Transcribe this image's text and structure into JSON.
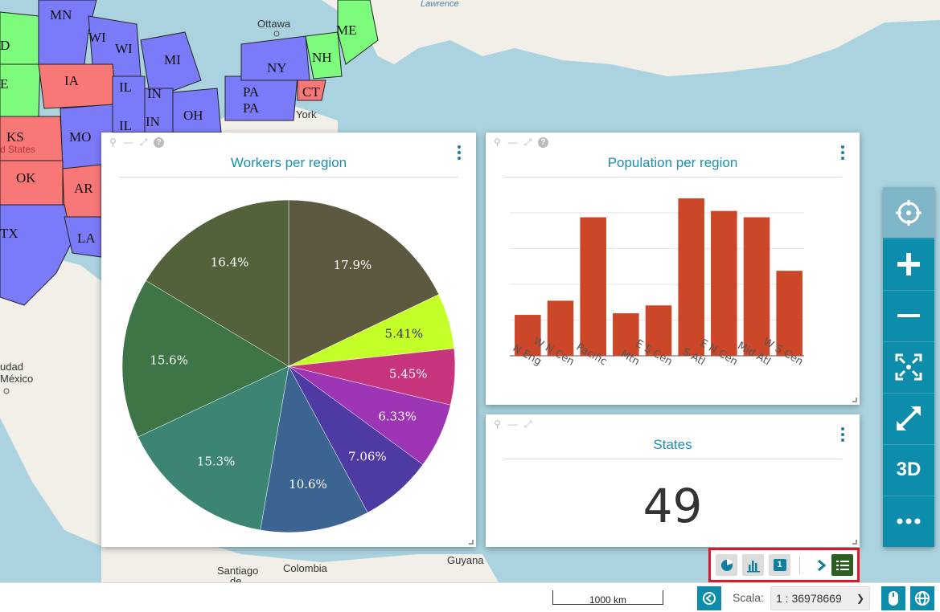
{
  "map": {
    "state_labels": {
      "mn": "MN",
      "wi": "WI",
      "wi2": "WI",
      "mi": "MI",
      "ia": "IA",
      "il": "IL",
      "il2": "IL",
      "in": "IN",
      "in2": "IN",
      "oh": "OH",
      "ny": "NY",
      "pa": "PA",
      "pa2": "PA",
      "ct": "CT",
      "nh": "NH",
      "me": "ME",
      "ks": "KS",
      "mo": "MO",
      "ok": "OK",
      "ar": "AR",
      "la": "LA",
      "tx": "TX",
      "e": "E",
      "d": "D"
    },
    "place_labels": {
      "ottawa": "Ottawa",
      "york": "York",
      "united_states": "d States",
      "lawrence": "Lawrence",
      "ciudad": "udad",
      "mexico": "México",
      "santiago": "Santiago",
      "colombia": "Colombia",
      "guyana": "Guyana",
      "de": "de"
    },
    "colors": {
      "blue": "#7b7bfa",
      "green": "#7dfb7d",
      "red": "#f87878"
    }
  },
  "widgets": {
    "workers": {
      "title": "Workers per region",
      "chart_data": {
        "type": "pie",
        "title": "Workers per region",
        "slices": [
          {
            "label": "17.9%",
            "value": 17.9,
            "color": "#5c5940"
          },
          {
            "label": "5.41%",
            "value": 5.41,
            "color": "#c5ff2a"
          },
          {
            "label": "5.45%",
            "value": 5.45,
            "color": "#c5347c"
          },
          {
            "label": "6.33%",
            "value": 6.33,
            "color": "#9d35b5"
          },
          {
            "label": "7.06%",
            "value": 7.06,
            "color": "#4d3aa3"
          },
          {
            "label": "10.6%",
            "value": 10.6,
            "color": "#3b6590"
          },
          {
            "label": "15.3%",
            "value": 15.3,
            "color": "#3c8574"
          },
          {
            "label": "15.6%",
            "value": 15.6,
            "color": "#3d7547"
          },
          {
            "label": "16.4%",
            "value": 16.4,
            "color": "#54623c"
          }
        ]
      }
    },
    "population": {
      "title": "Population per region",
      "chart_data": {
        "type": "bar",
        "title": "Population per region",
        "categories": [
          "N Eng",
          "W N Cen",
          "Pacific",
          "Mtn",
          "E S Cen",
          "S Atl",
          "E N Cen",
          "Mid Atl",
          "W S Cen"
        ],
        "values": [
          13,
          17.5,
          44,
          13.5,
          16,
          50,
          46,
          44,
          27
        ],
        "ylim": [
          0,
          50
        ],
        "grid": true,
        "color": "#cc4628"
      }
    },
    "states": {
      "title": "States",
      "value": "49"
    }
  },
  "toolbar": {
    "locate_icon": "crosshair-icon",
    "zoom_in_icon": "plus-icon",
    "zoom_out_icon": "minus-icon",
    "zoom_extent_icon": "extent-icon",
    "fullscreen_icon": "expand-icon",
    "three_d_label": "3D",
    "more_icon": "ellipsis-icon"
  },
  "tray": {
    "counter_icon_label": "1"
  },
  "footer": {
    "scalebar_label": "1000 km",
    "scale_label": "Scala:",
    "scale_value": "1 : 36978669"
  }
}
